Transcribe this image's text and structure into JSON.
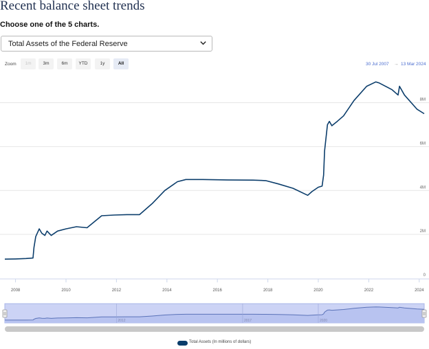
{
  "page": {
    "title": "Recent balance sheet trends",
    "instruction": "Choose one of the 5 charts.",
    "selector_value": "Total Assets of the Federal Reserve"
  },
  "zoom": {
    "label": "Zoom",
    "buttons": [
      {
        "label": "1m",
        "state": "disabled"
      },
      {
        "label": "3m",
        "state": "normal"
      },
      {
        "label": "6m",
        "state": "normal"
      },
      {
        "label": "YTD",
        "state": "normal"
      },
      {
        "label": "1y",
        "state": "normal"
      },
      {
        "label": "All",
        "state": "active"
      }
    ],
    "from_date": "30 Jul 2007",
    "range_separator": "→",
    "to_date": "13 Mar 2024"
  },
  "colors": {
    "series": "#0b3d6b",
    "navigator_fill": "#ccd3f5",
    "date_text": "#4a6ccf"
  },
  "chart_data": {
    "type": "line",
    "title": "",
    "xlabel": "",
    "ylabel": "",
    "x_ticks": [
      "2008",
      "2010",
      "2012",
      "2014",
      "2016",
      "2018",
      "2020",
      "2022",
      "2024"
    ],
    "y_ticks": [
      "0",
      "2M",
      "4M",
      "6M",
      "8M"
    ],
    "navigator_ticks": [
      "2012",
      "2017",
      "2020"
    ],
    "ylim": [
      0,
      9300000
    ],
    "grid": "horizontal",
    "legend_position": "bottom-center",
    "series": [
      {
        "name": "Total Assets (In millions of dollars)",
        "points": [
          [
            "2007-07-30",
            870000
          ],
          [
            "2008-01-01",
            880000
          ],
          [
            "2008-06-01",
            900000
          ],
          [
            "2008-09-10",
            920000
          ],
          [
            "2008-09-24",
            1400000
          ],
          [
            "2008-10-20",
            1900000
          ],
          [
            "2008-12-10",
            2250000
          ],
          [
            "2009-01-15",
            2050000
          ],
          [
            "2009-03-01",
            1950000
          ],
          [
            "2009-04-01",
            2150000
          ],
          [
            "2009-06-01",
            1950000
          ],
          [
            "2009-09-01",
            2150000
          ],
          [
            "2010-01-01",
            2250000
          ],
          [
            "2010-06-01",
            2350000
          ],
          [
            "2010-11-01",
            2300000
          ],
          [
            "2011-06-01",
            2850000
          ],
          [
            "2011-12-01",
            2880000
          ],
          [
            "2012-06-01",
            2900000
          ],
          [
            "2012-12-01",
            2900000
          ],
          [
            "2013-06-01",
            3400000
          ],
          [
            "2013-12-01",
            4000000
          ],
          [
            "2014-06-01",
            4400000
          ],
          [
            "2014-10-01",
            4500000
          ],
          [
            "2015-06-01",
            4500000
          ],
          [
            "2016-06-01",
            4480000
          ],
          [
            "2017-06-01",
            4470000
          ],
          [
            "2017-12-01",
            4450000
          ],
          [
            "2018-06-01",
            4300000
          ],
          [
            "2019-01-01",
            4100000
          ],
          [
            "2019-08-01",
            3780000
          ],
          [
            "2019-10-01",
            3950000
          ],
          [
            "2020-01-01",
            4150000
          ],
          [
            "2020-02-25",
            4200000
          ],
          [
            "2020-03-18",
            4700000
          ],
          [
            "2020-04-01",
            5800000
          ],
          [
            "2020-05-13",
            7000000
          ],
          [
            "2020-06-10",
            7150000
          ],
          [
            "2020-07-15",
            6950000
          ],
          [
            "2020-10-01",
            7150000
          ],
          [
            "2021-01-01",
            7400000
          ],
          [
            "2021-06-01",
            8100000
          ],
          [
            "2021-12-01",
            8750000
          ],
          [
            "2022-04-13",
            8950000
          ],
          [
            "2022-06-01",
            8900000
          ],
          [
            "2022-12-01",
            8600000
          ],
          [
            "2023-03-01",
            8350000
          ],
          [
            "2023-03-22",
            8750000
          ],
          [
            "2023-06-01",
            8350000
          ],
          [
            "2023-12-01",
            7700000
          ],
          [
            "2024-03-13",
            7500000
          ]
        ]
      }
    ]
  }
}
